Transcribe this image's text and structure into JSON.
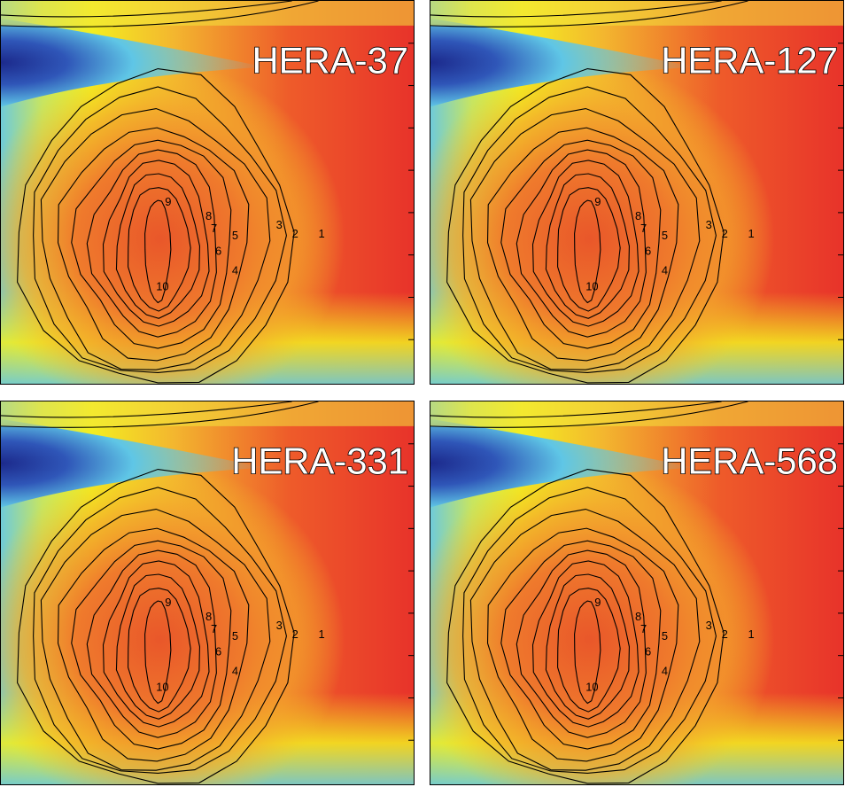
{
  "chart_data": [
    {
      "type": "heatmap",
      "title": "HERA-37",
      "contour_levels": [
        1,
        2,
        3,
        4,
        5,
        6,
        7,
        8,
        9,
        10
      ],
      "peak_value": 10,
      "colormap": "jet",
      "grid": false,
      "legend": "none"
    },
    {
      "type": "heatmap",
      "title": "HERA-127",
      "contour_levels": [
        1,
        2,
        3,
        4,
        5,
        6,
        7,
        8,
        9,
        10
      ],
      "peak_value": 10,
      "colormap": "jet",
      "grid": false,
      "legend": "none"
    },
    {
      "type": "heatmap",
      "title": "HERA-331",
      "contour_levels": [
        1,
        2,
        3,
        4,
        5,
        6,
        7,
        8,
        9,
        10
      ],
      "peak_value": 10,
      "colormap": "jet",
      "grid": false,
      "legend": "none"
    },
    {
      "type": "heatmap",
      "title": "HERA-568",
      "contour_levels": [
        1,
        2,
        3,
        4,
        5,
        6,
        7,
        8,
        9,
        10
      ],
      "peak_value": 10,
      "colormap": "jet",
      "grid": false,
      "legend": "none"
    }
  ],
  "colors": {
    "deep_blue": "#1c2a8c",
    "cyan": "#5fc6e6",
    "yellow": "#f3ee20",
    "orange": "#f4a42a",
    "red": "#e8332a"
  }
}
